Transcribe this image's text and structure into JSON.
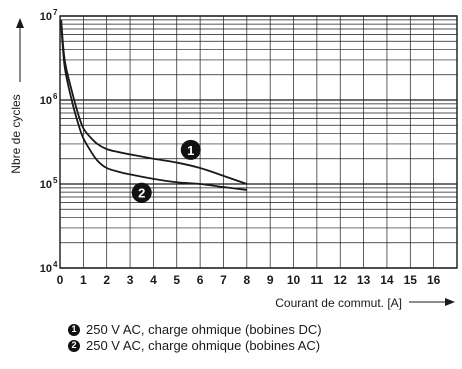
{
  "chart_data": {
    "type": "line",
    "ylabel": "Nbre de cycles",
    "xlabel": "Courant de commut. [A]",
    "x_ticks": [
      "0",
      "1",
      "2",
      "3",
      "4",
      "5",
      "6",
      "7",
      "8",
      "9",
      "10",
      "11",
      "12",
      "13",
      "14",
      "15",
      "16"
    ],
    "y_ticks": [
      {
        "base": "10",
        "exp": "4",
        "value": 10000
      },
      {
        "base": "10",
        "exp": "5",
        "value": 100000
      },
      {
        "base": "10",
        "exp": "6",
        "value": 1000000
      },
      {
        "base": "10",
        "exp": "7",
        "value": 10000000
      }
    ],
    "xlim": [
      0,
      17
    ],
    "ylim": [
      10000,
      10000000
    ],
    "y_scale": "log",
    "grid": true,
    "series": [
      {
        "marker": "1",
        "name": "250 V AC, charge ohmique (bobines DC)",
        "x": [
          0.05,
          0.2,
          0.5,
          0.8,
          1.0,
          1.3,
          1.6,
          2.0,
          2.5,
          3.0,
          4.0,
          5.0,
          6.0,
          7.0,
          8.0
        ],
        "y": [
          9000000,
          3000000,
          1300000,
          650000,
          460000,
          360000,
          300000,
          260000,
          240000,
          225000,
          200000,
          180000,
          155000,
          125000,
          100000
        ]
      },
      {
        "marker": "2",
        "name": "250 V AC, charge ohmique (bobines AC)",
        "x": [
          0.05,
          0.2,
          0.5,
          0.8,
          1.0,
          1.3,
          1.6,
          2.0,
          2.5,
          3.0,
          4.0,
          5.0,
          6.0,
          7.0,
          8.0
        ],
        "y": [
          8000000,
          2500000,
          1000000,
          500000,
          350000,
          250000,
          190000,
          155000,
          140000,
          130000,
          115000,
          105000,
          100000,
          92000,
          85000
        ]
      }
    ]
  },
  "colors": {
    "ink": "#1a1a1a",
    "marker_bg": "#111111"
  }
}
